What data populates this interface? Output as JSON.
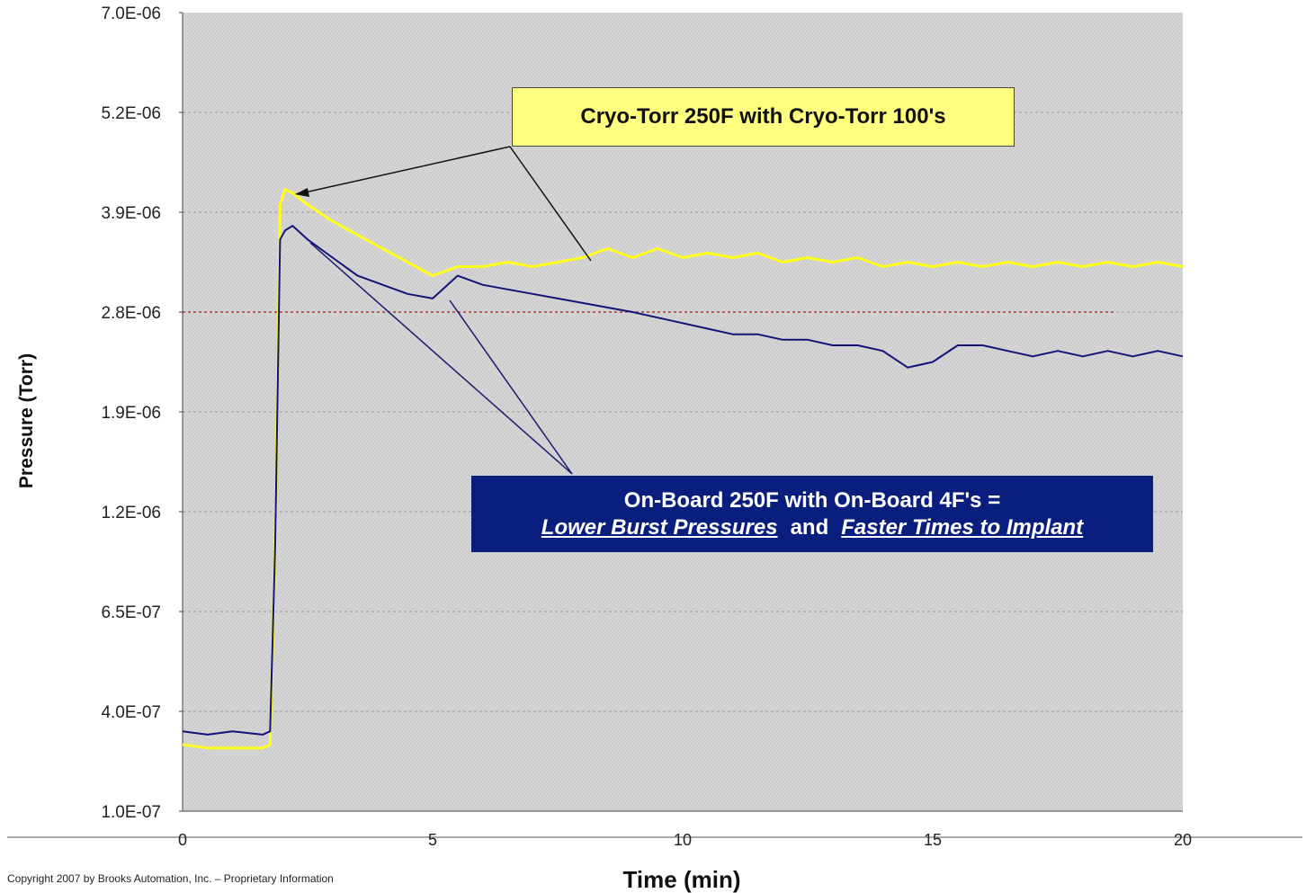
{
  "chart_data": {
    "type": "line",
    "xlabel": "Time (min)",
    "ylabel": "Pressure (Torr)",
    "x_ticks": [
      "0",
      "5",
      "10",
      "15",
      "20"
    ],
    "y_ticks": [
      "7.0E-06",
      "5.2E-06",
      "3.9E-06",
      "2.8E-06",
      "1.9E-06",
      "1.2E-06",
      "6.5E-07",
      "4.0E-07",
      "1.0E-07"
    ],
    "xlim": [
      0,
      20
    ],
    "grid": "horizontal dashed",
    "reference_line": 2.8e-06,
    "series": [
      {
        "color": "#ffff1a",
        "x": [
          0,
          0.5,
          1.0,
          1.6,
          1.75,
          1.85,
          1.95,
          2.05,
          2.2,
          2.5,
          3.0,
          3.5,
          4.0,
          4.5,
          5.0,
          5.5,
          6.0,
          6.5,
          7.0,
          7.5,
          8.0,
          8.5,
          9.0,
          9.5,
          10.0,
          10.5,
          11.0,
          11.5,
          12.0,
          12.5,
          13.0,
          13.5,
          14.0,
          14.5,
          15.0,
          15.5,
          16.0,
          16.5,
          17.0,
          17.5,
          18.0,
          18.5,
          19.0,
          19.5,
          20.0
        ],
        "values": [
          3e-07,
          2.9e-07,
          2.9e-07,
          2.9e-07,
          3e-07,
          1e-06,
          4e-06,
          4.2e-06,
          4.15e-06,
          4e-06,
          3.8e-06,
          3.65e-06,
          3.5e-06,
          3.35e-06,
          3.2e-06,
          3.3e-06,
          3.3e-06,
          3.35e-06,
          3.3e-06,
          3.35e-06,
          3.4e-06,
          3.5e-06,
          3.4e-06,
          3.5e-06,
          3.4e-06,
          3.45e-06,
          3.4e-06,
          3.45e-06,
          3.35e-06,
          3.4e-06,
          3.35e-06,
          3.4e-06,
          3.3e-06,
          3.35e-06,
          3.3e-06,
          3.35e-06,
          3.3e-06,
          3.35e-06,
          3.3e-06,
          3.35e-06,
          3.3e-06,
          3.35e-06,
          3.3e-06,
          3.35e-06,
          3.3e-06
        ]
      },
      {
        "color": "#141478",
        "x": [
          0,
          0.5,
          1.0,
          1.6,
          1.75,
          1.85,
          1.95,
          2.05,
          2.2,
          2.5,
          3.0,
          3.5,
          4.0,
          4.5,
          5.0,
          5.5,
          6.0,
          6.5,
          7.0,
          7.5,
          8.0,
          8.5,
          9.0,
          9.5,
          10.0,
          10.5,
          11.0,
          11.5,
          12.0,
          12.5,
          13.0,
          13.5,
          14.0,
          14.5,
          15.0,
          15.5,
          16.0,
          16.5,
          17.0,
          17.5,
          18.0,
          18.5,
          19.0,
          19.5,
          20.0
        ],
        "values": [
          3.4e-07,
          3.3e-07,
          3.4e-07,
          3.3e-07,
          3.4e-07,
          1e-06,
          3.6e-06,
          3.7e-06,
          3.75e-06,
          3.6e-06,
          3.4e-06,
          3.2e-06,
          3.1e-06,
          3e-06,
          2.95e-06,
          3.2e-06,
          3.1e-06,
          3.05e-06,
          3e-06,
          2.95e-06,
          2.9e-06,
          2.85e-06,
          2.8e-06,
          2.75e-06,
          2.7e-06,
          2.65e-06,
          2.6e-06,
          2.6e-06,
          2.55e-06,
          2.55e-06,
          2.5e-06,
          2.5e-06,
          2.45e-06,
          2.3e-06,
          2.35e-06,
          2.5e-06,
          2.5e-06,
          2.45e-06,
          2.4e-06,
          2.45e-06,
          2.4e-06,
          2.45e-06,
          2.4e-06,
          2.45e-06,
          2.4e-06
        ]
      }
    ],
    "annotations": {
      "yellow_box": "Cryo-Torr 250F with Cryo-Torr 100's",
      "blue_box_line1": "On-Board 250F with On-Board 4F's =",
      "blue_box_part1": "Lower Burst Pressures",
      "blue_box_and": "and",
      "blue_box_part2": "Faster Times to Implant"
    }
  },
  "footer": {
    "copyright": "Copyright 2007 by Brooks Automation, Inc. – Proprietary Information"
  }
}
